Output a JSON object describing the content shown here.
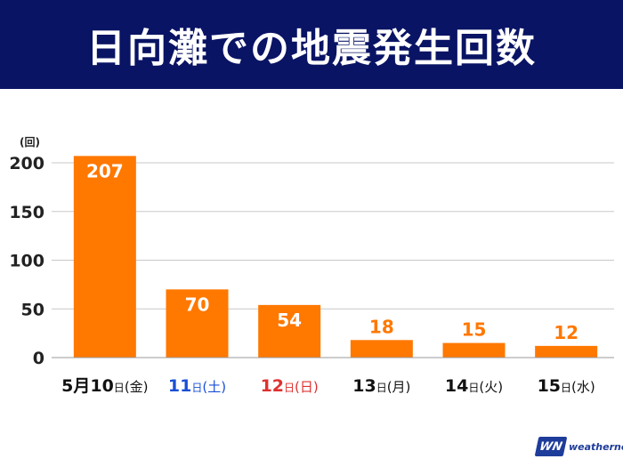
{
  "header": {
    "title": "日向灘での地震発生回数"
  },
  "chart_data": {
    "type": "bar",
    "title": "日向灘での地震発生回数",
    "ylabel": "(回)",
    "xlabel": "",
    "ylim": [
      0,
      200
    ],
    "yticks": [
      0,
      50,
      100,
      150,
      200
    ],
    "grid": true,
    "categories": [
      {
        "num": "5月10",
        "day": "日",
        "wd": "(金)",
        "color": "#111111"
      },
      {
        "num": "11",
        "day": "日",
        "wd": "(土)",
        "color": "#1a4fd6"
      },
      {
        "num": "12",
        "day": "日",
        "wd": "(日)",
        "color": "#e03030"
      },
      {
        "num": "13",
        "day": "日",
        "wd": "(月)",
        "color": "#111111"
      },
      {
        "num": "14",
        "day": "日",
        "wd": "(火)",
        "color": "#111111"
      },
      {
        "num": "15",
        "day": "日",
        "wd": "(水)",
        "color": "#111111"
      }
    ],
    "values": [
      207,
      70,
      54,
      18,
      15,
      12
    ],
    "bar_color": "#ff7800"
  },
  "logo": {
    "mark": "WN",
    "text": "weathernews"
  }
}
